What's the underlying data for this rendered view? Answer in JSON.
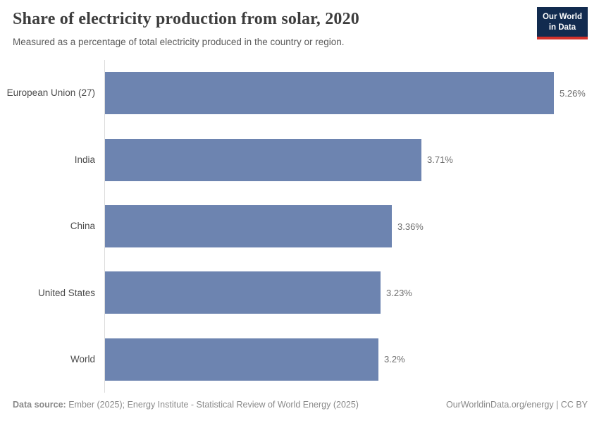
{
  "header": {
    "title": "Share of electricity production from solar, 2020",
    "subtitle": "Measured as a percentage of total electricity produced in the country or region.",
    "logo": {
      "line1": "Our World",
      "line2": "in Data"
    }
  },
  "chart_data": {
    "type": "bar",
    "orientation": "horizontal",
    "title": "Share of electricity production from solar, 2020",
    "subtitle": "Measured as a percentage of total electricity produced in the country or region.",
    "categories": [
      "European Union (27)",
      "India",
      "China",
      "United States",
      "World"
    ],
    "values": [
      5.26,
      3.71,
      3.36,
      3.23,
      3.2
    ],
    "value_labels": [
      "5.26%",
      "3.71%",
      "3.36%",
      "3.23%",
      "3.2%"
    ],
    "unit": "%",
    "xlim": [
      0,
      5.26
    ],
    "grid": false,
    "legend": false,
    "sort": "descending"
  },
  "footer": {
    "datasource_label": "Data source:",
    "datasource_text": "Ember (2025); Energy Institute - Statistical Review of World Energy (2025)",
    "credit": "OurWorldinData.org/energy | CC BY"
  },
  "colors": {
    "bar": "#6d84b0",
    "logo_bg": "#122b4f",
    "logo_accent": "#d3322b",
    "axis_line": "#dcdcdc",
    "title_text": "#3d3d3d",
    "subtitle_text": "#5b5b5b",
    "label_text": "#4c4c4c",
    "value_text": "#6f6f6f",
    "footer_text": "#8a8a8a"
  }
}
